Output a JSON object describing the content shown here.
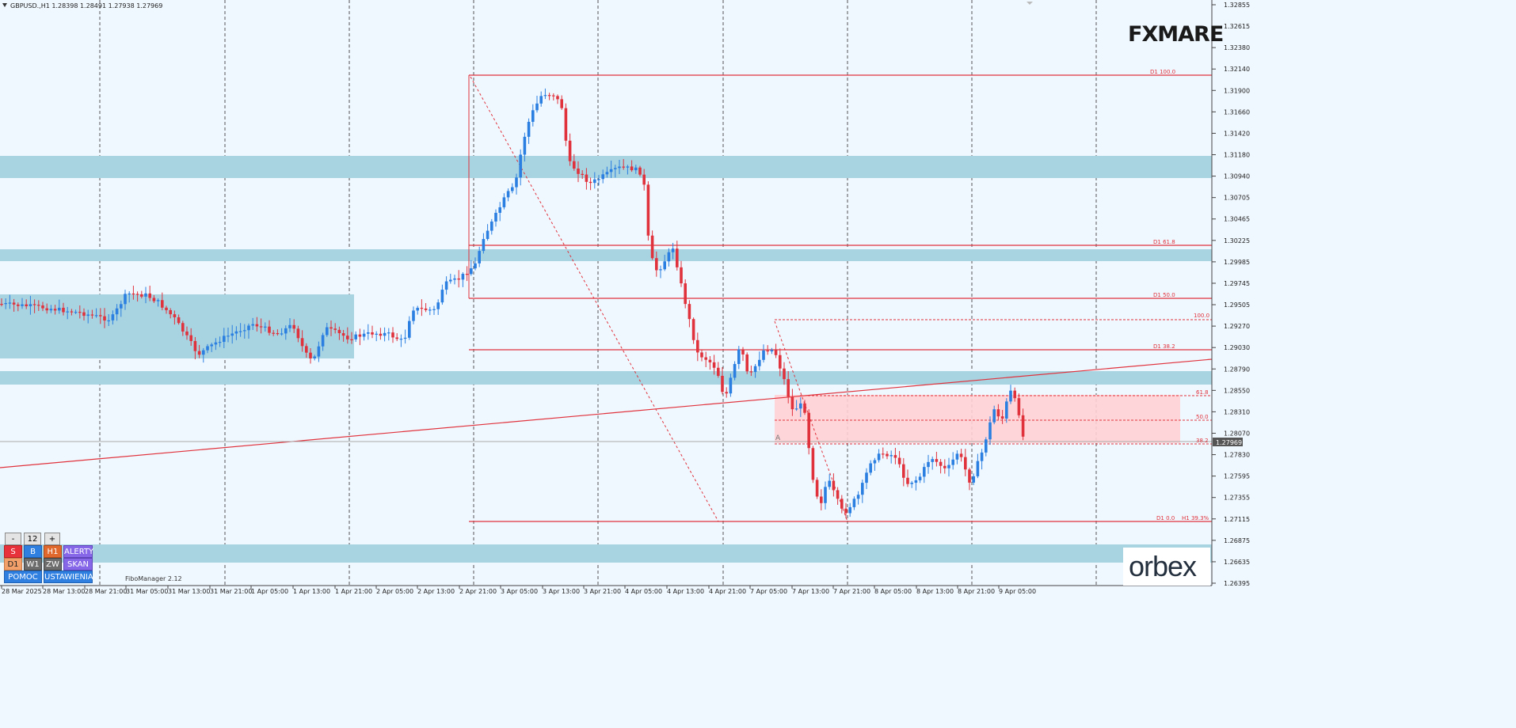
{
  "window": {
    "symbol_line": "GBPUSD.,H1  1.28398 1.28491 1.27938 1.27969"
  },
  "price_axis": {
    "ticks": [
      "1.32855",
      "1.32615",
      "1.32380",
      "1.32140",
      "1.31900",
      "1.31660",
      "1.31420",
      "1.31180",
      "1.30940",
      "1.30705",
      "1.30465",
      "1.30225",
      "1.29985",
      "1.29745",
      "1.29505",
      "1.29270",
      "1.29030",
      "1.28790",
      "1.28550",
      "1.28310",
      "1.28070",
      "1.27830",
      "1.27595",
      "1.27355",
      "1.27115",
      "1.26875",
      "1.26635",
      "1.26395"
    ],
    "current_price": "1.27969"
  },
  "time_axis": {
    "labels": [
      "28 Mar 2025",
      "28 Mar 13:00",
      "28 Mar 21:00",
      "31 Mar 05:00",
      "31 Mar 13:00",
      "31 Mar 21:00",
      "1 Apr 05:00",
      "1 Apr 13:00",
      "1 Apr 21:00",
      "2 Apr 05:00",
      "2 Apr 13:00",
      "2 Apr 21:00",
      "3 Apr 05:00",
      "3 Apr 13:00",
      "3 Apr 21:00",
      "4 Apr 05:00",
      "4 Apr 13:00",
      "4 Apr 21:00",
      "7 Apr 05:00",
      "7 Apr 13:00",
      "7 Apr 21:00",
      "8 Apr 05:00",
      "8 Apr 13:00",
      "8 Apr 21:00",
      "9 Apr 05:00"
    ]
  },
  "fibo_labels": {
    "d1_100": "D1 100.0",
    "d1_618": "D1 61.8",
    "d1_50": "D1 50.0",
    "d1_382": "D1 38.2",
    "d1_0": "D1 0.0",
    "h1_393": "H1 39.3%",
    "h_100": "100.0",
    "h_618": "61.8",
    "h_50": "50.0",
    "h_382": "38.2",
    "point_a": "A"
  },
  "indicator_name": "FiboManager 2.12",
  "panel": {
    "minus": "-",
    "value": "12",
    "plus": "+",
    "sell": "S",
    "buy": "B",
    "h1": "H1",
    "alerts": "ALERTY",
    "d1": "D1",
    "w1": "W1",
    "zw": "ZW",
    "scan": "SKAN",
    "help": "POMOC",
    "settings": "USTAWIENIA"
  },
  "logos": {
    "top_right": "FXMARE",
    "bottom_right": "orbex"
  },
  "colors": {
    "background": "#f0f8ff",
    "bull": "#2a7fe0",
    "bear": "#e0323c",
    "zone": "#a8d3e0",
    "fib_line": "#e0323c",
    "pink_zone": "#ffd0d4"
  }
}
